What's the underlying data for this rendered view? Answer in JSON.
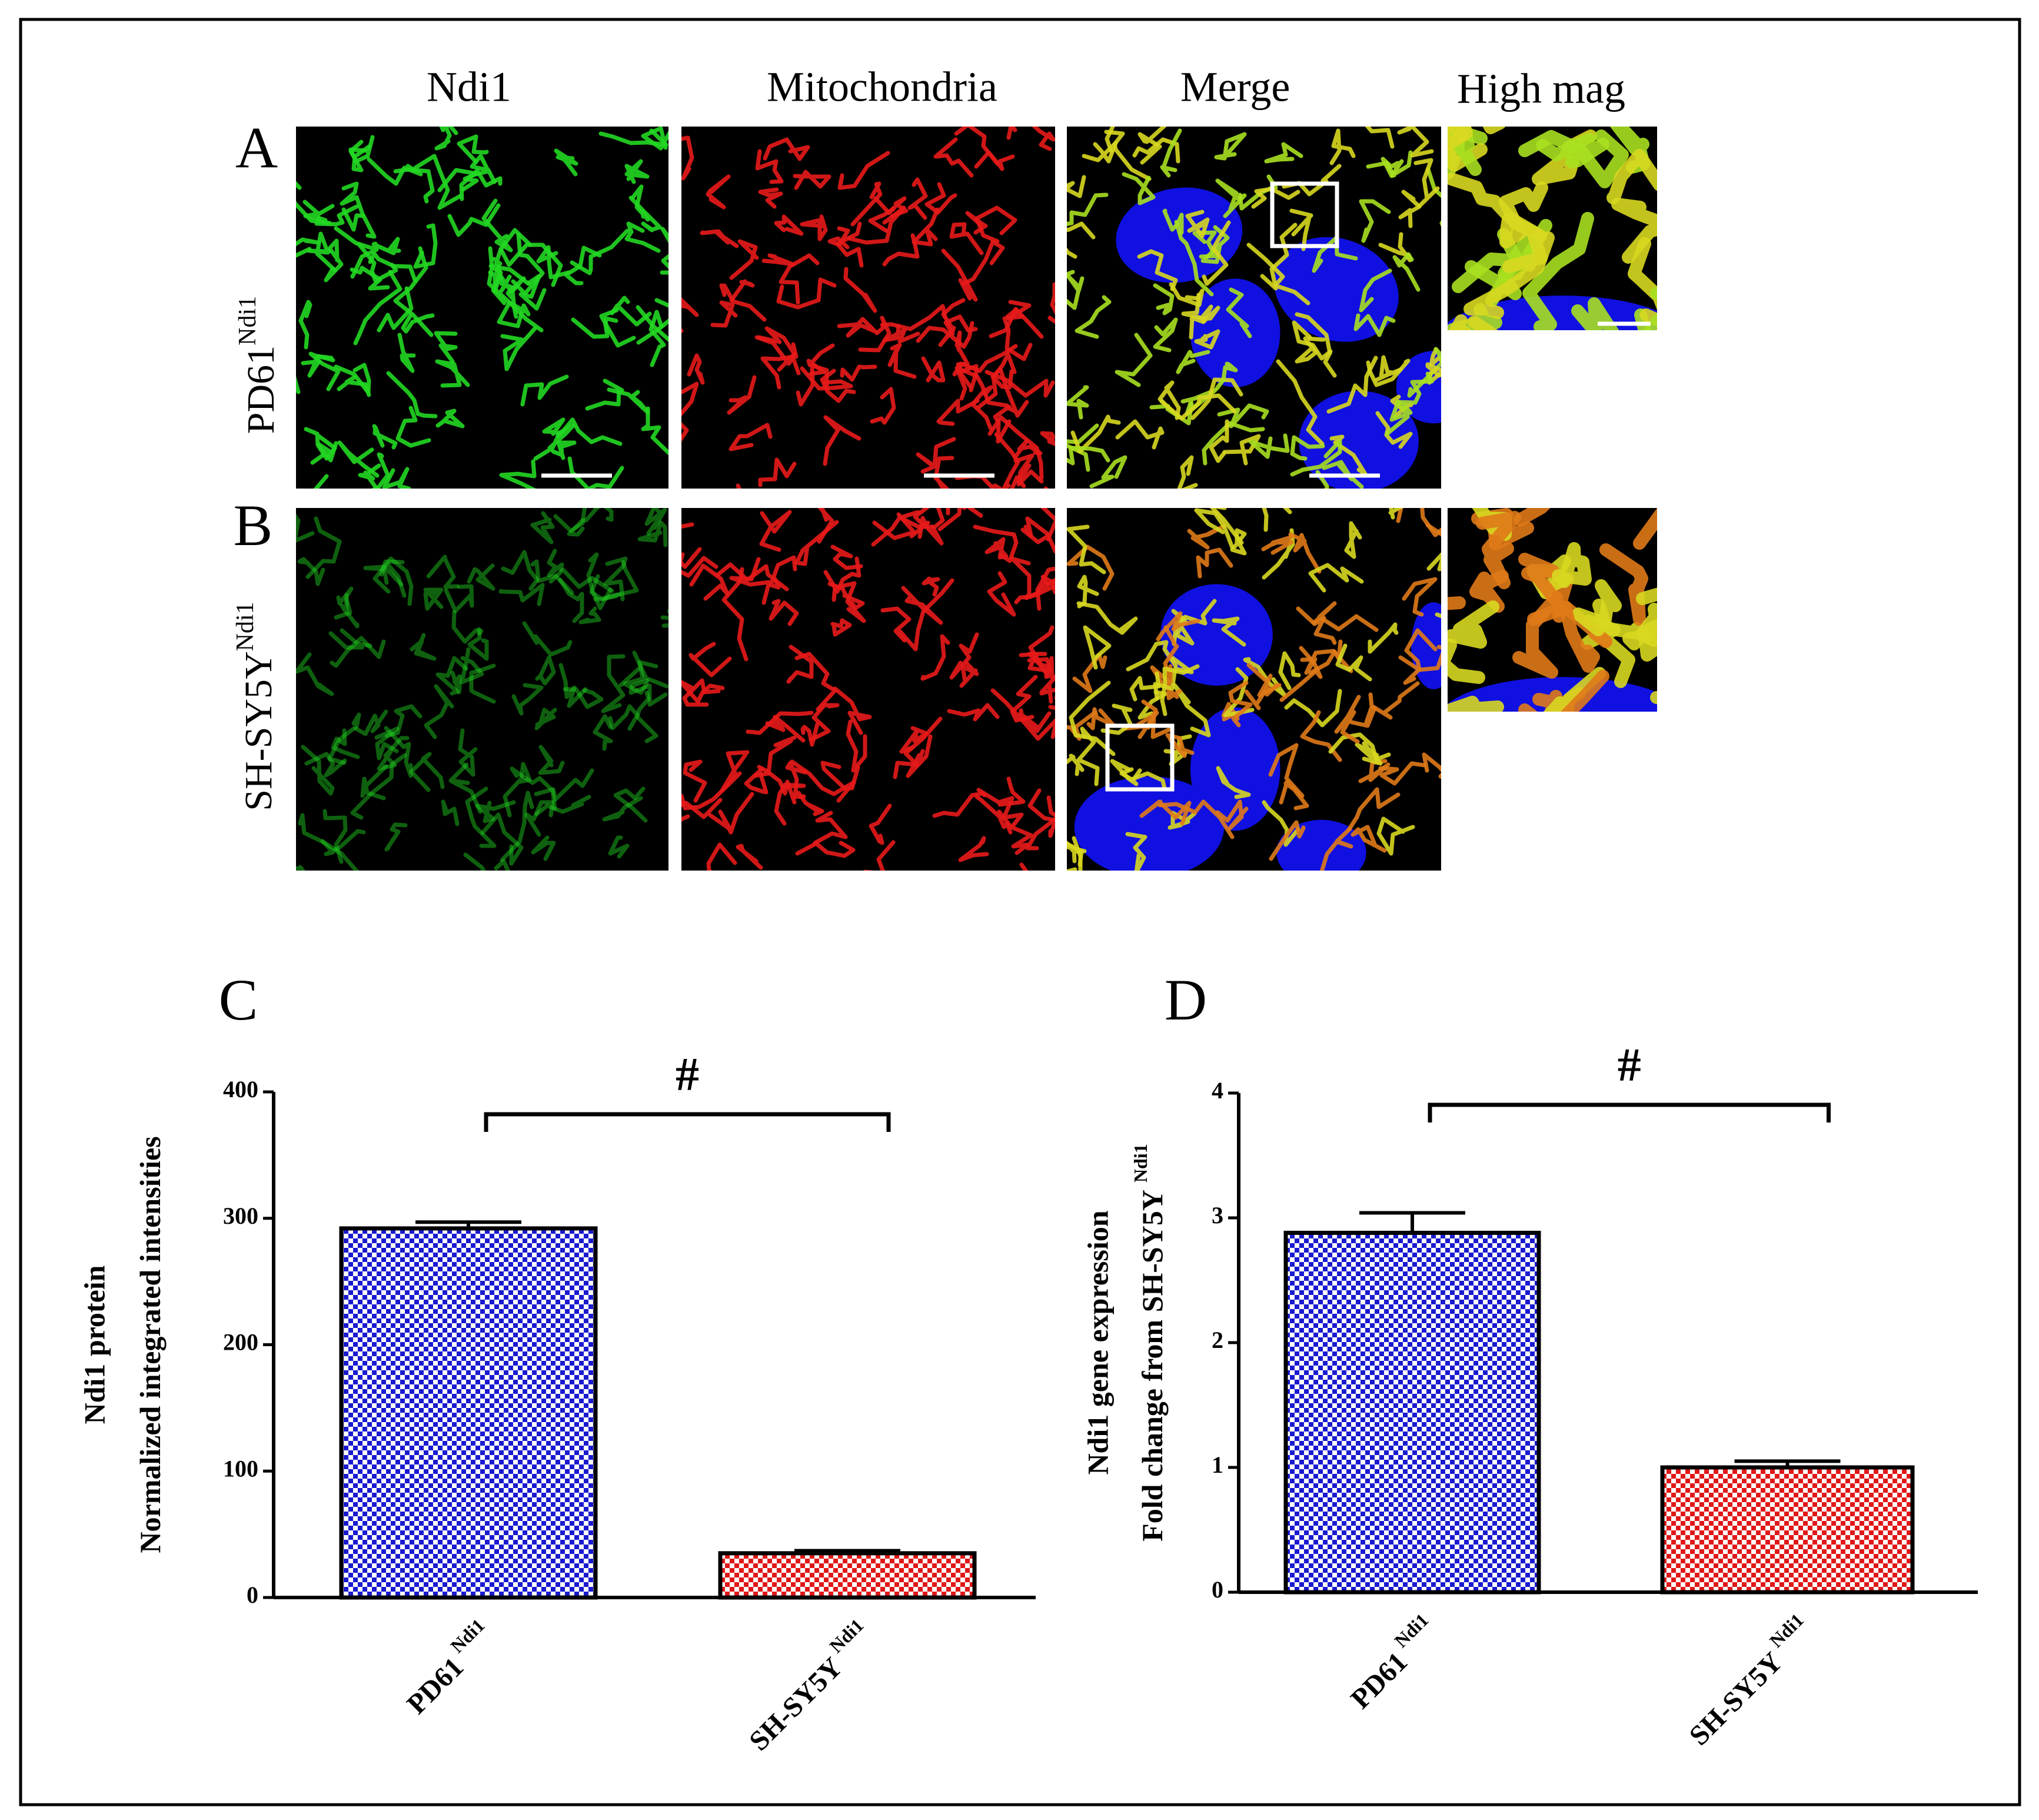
{
  "figure": {
    "column_headers": [
      "Ndi1",
      "Mitochondria",
      "Merge",
      "High mag"
    ],
    "rows": [
      {
        "panel": "A",
        "label": "PD61",
        "label_sup": "Ndi1"
      },
      {
        "panel": "B",
        "label": "SH-SY5Y",
        "label_sup": "Ndi1"
      }
    ]
  },
  "chart_data": [
    {
      "type": "bar",
      "panel": "C",
      "ylabel": [
        "Ndi1 protein",
        "Normalized integrated intensities"
      ],
      "categories": [
        "PD61",
        "SH-SY5Y"
      ],
      "category_sup": [
        "Ndi1",
        "Ndi1"
      ],
      "values": [
        292,
        35
      ],
      "errors": [
        5,
        2
      ],
      "colors": [
        "#1a1ad0",
        "#e01818"
      ],
      "ylim": [
        0,
        400
      ],
      "yticks": [
        0,
        100,
        200,
        300,
        400
      ],
      "annotation": "#"
    },
    {
      "type": "bar",
      "panel": "D",
      "ylabel": [
        "Ndi1 gene expression",
        "Fold change from SH-SY5Y"
      ],
      "ylabel_sup": "Ndi1",
      "categories": [
        "PD61",
        "SH-SY5Y"
      ],
      "category_sup": [
        "Ndi1",
        "Ndi1"
      ],
      "values": [
        2.88,
        1.0
      ],
      "errors": [
        0.16,
        0.05
      ],
      "colors": [
        "#1a1ad0",
        "#e01818"
      ],
      "ylim": [
        0,
        4
      ],
      "yticks": [
        0,
        1,
        2,
        3,
        4
      ],
      "annotation": "#"
    }
  ]
}
